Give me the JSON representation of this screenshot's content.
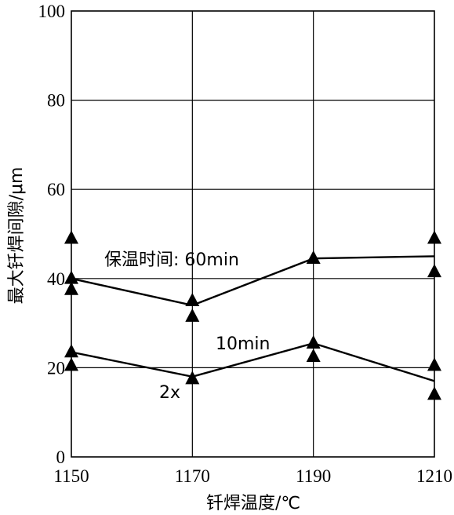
{
  "chart_data": {
    "type": "line",
    "xlabel": "钎焊温度/℃",
    "ylabel": "最大钎焊间隙/μm",
    "x": [
      1150,
      1170,
      1190,
      1210
    ],
    "x_ticks": [
      "1150",
      "1170",
      "1190",
      "1210"
    ],
    "xlim": [
      1150,
      1210
    ],
    "ylim": [
      0,
      100
    ],
    "y_ticks": [
      "0",
      "20",
      "40",
      "60",
      "80",
      "100"
    ],
    "grid": true,
    "series": [
      {
        "name": "保温时间: 60min",
        "values": [
          40,
          34,
          44.5,
          45
        ]
      },
      {
        "name": "10min",
        "values": [
          23.5,
          18,
          25.5,
          17
        ]
      }
    ],
    "markers": [
      {
        "x": 1150,
        "y": 49
      },
      {
        "x": 1150,
        "y": 40
      },
      {
        "x": 1150,
        "y": 37.5
      },
      {
        "x": 1150,
        "y": 23.5
      },
      {
        "x": 1150,
        "y": 20.5
      },
      {
        "x": 1170,
        "y": 35
      },
      {
        "x": 1170,
        "y": 31.5
      },
      {
        "x": 1170,
        "y": 17.5
      },
      {
        "x": 1190,
        "y": 44.5
      },
      {
        "x": 1190,
        "y": 25.5
      },
      {
        "x": 1190,
        "y": 22.5
      },
      {
        "x": 1210,
        "y": 49
      },
      {
        "x": 1210,
        "y": 41.5
      },
      {
        "x": 1210,
        "y": 20.5
      },
      {
        "x": 1210,
        "y": 14
      }
    ],
    "annotations": {
      "series_60_label": "保温时间: 60min",
      "series_10_label": "10min",
      "marker_note": "2x"
    }
  }
}
